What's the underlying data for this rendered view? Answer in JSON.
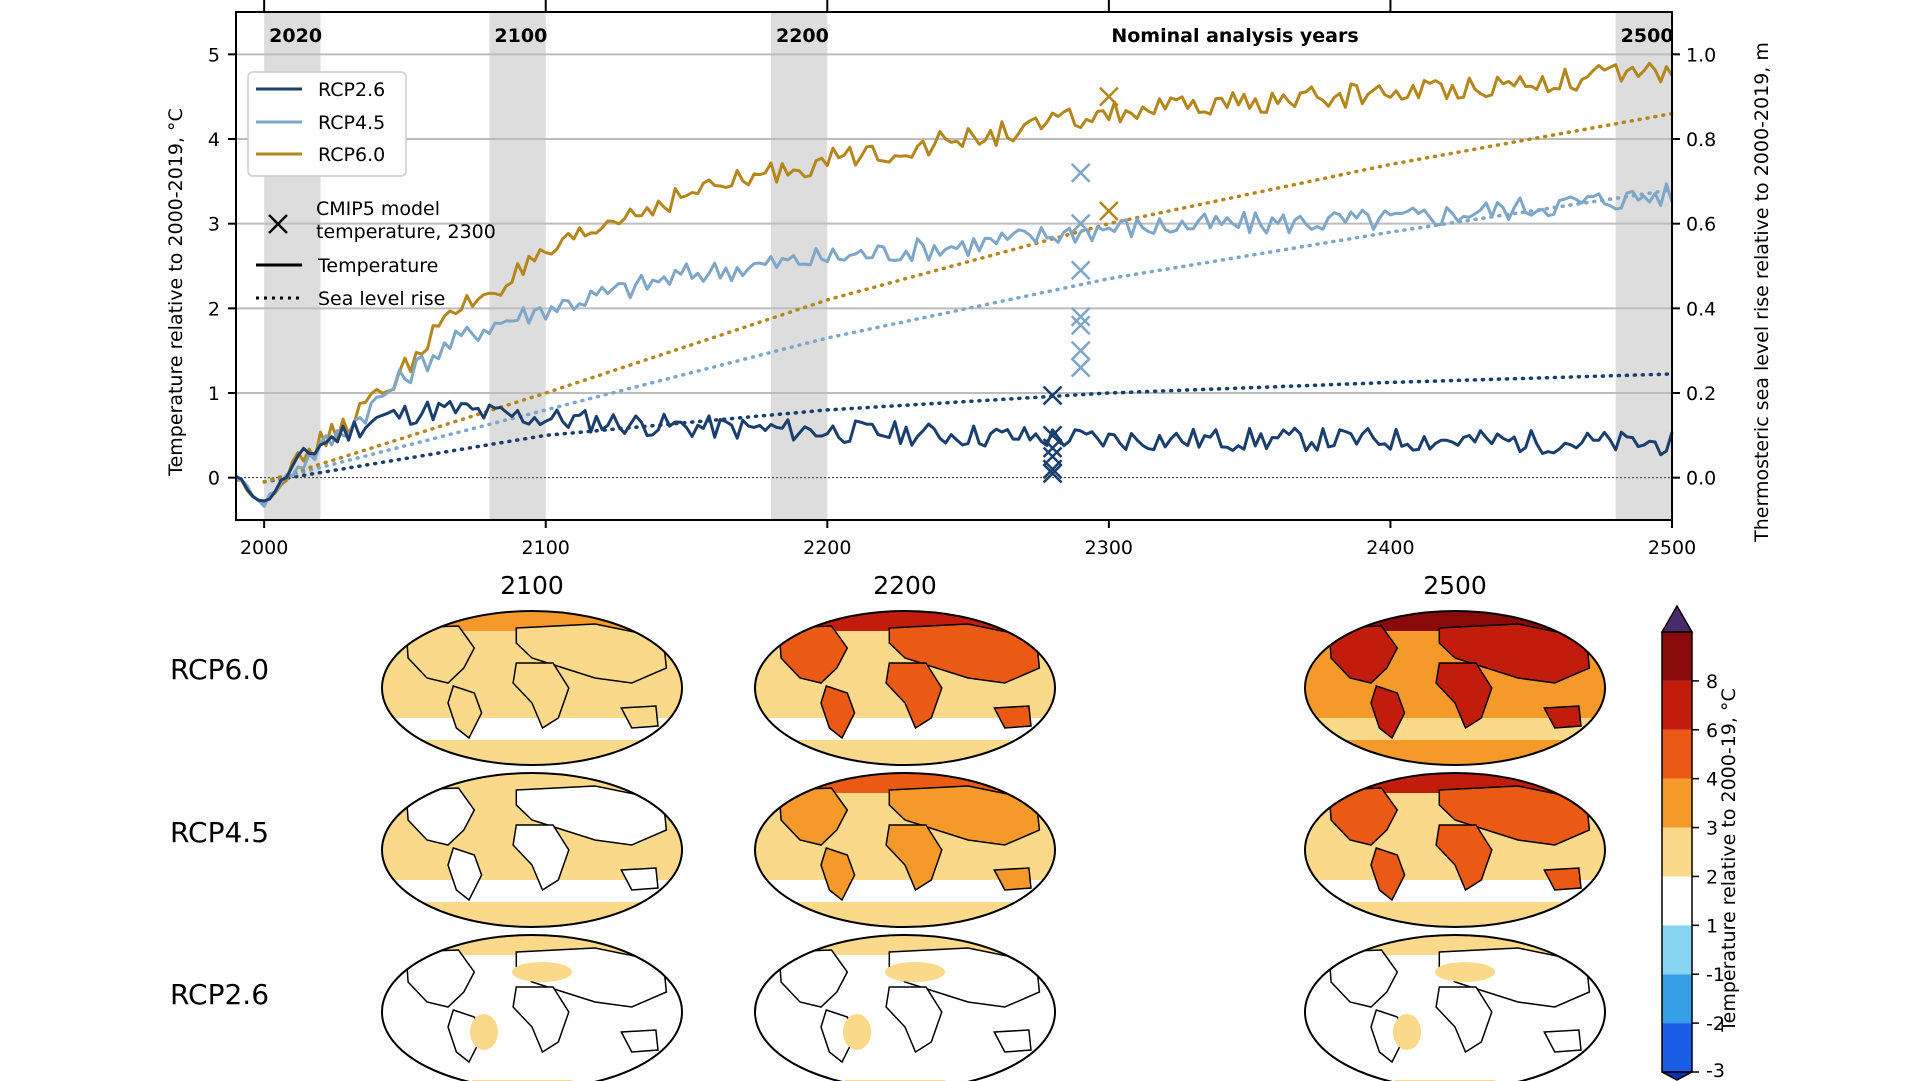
{
  "chart_data": [
    {
      "type": "line",
      "x_range": [
        1990,
        2500
      ],
      "y_left": {
        "label": "Temperature relative to 2000-2019, °C",
        "ylim": [
          -0.5,
          5.5
        ],
        "ticks": [
          0,
          1,
          2,
          3,
          4,
          5
        ]
      },
      "y_right": {
        "label": "Thermosteric sea level rise relative to 2000-2019, m",
        "ylim": [
          -0.1,
          1.1
        ],
        "ticks": [
          "0.0",
          "0.2",
          "0.4",
          "0.6",
          "0.8",
          "1.0"
        ]
      },
      "x_ticks": [
        2000,
        2100,
        2200,
        2300,
        2400,
        2500
      ],
      "top_ticks": [
        2000,
        2100,
        2200,
        2300,
        2400
      ],
      "shaded_periods": [
        {
          "label": "2020",
          "start": 2000,
          "end": 2020
        },
        {
          "label": "2100",
          "start": 2080,
          "end": 2100
        },
        {
          "label": "2200",
          "start": 2180,
          "end": 2200
        },
        {
          "label": "2500",
          "start": 2480,
          "end": 2500
        }
      ],
      "annotation": "Nominal analysis years",
      "legend": {
        "position": "top-left",
        "entries": [
          "RCP2.6",
          "RCP4.5",
          "RCP6.0"
        ],
        "marker_entry": "CMIP5 model temperature, 2300",
        "style_entries": [
          "Temperature",
          "Sea level rise"
        ]
      },
      "series": [
        {
          "name": "RCP2.6",
          "color": "#1a3f6e",
          "temperature": {
            "x": [
              1990,
              2000,
              2010,
              2020,
              2030,
              2040,
              2050,
              2060,
              2070,
              2080,
              2100,
              2150,
              2200,
              2300,
              2400,
              2500
            ],
            "y": [
              0.0,
              -0.3,
              0.1,
              0.4,
              0.55,
              0.7,
              0.75,
              0.8,
              0.8,
              0.75,
              0.7,
              0.6,
              0.55,
              0.45,
              0.45,
              0.4
            ]
          },
          "sea_level": {
            "x": [
              2000,
              2100,
              2200,
              2300,
              2400,
              2500
            ],
            "y": [
              -0.01,
              0.1,
              0.16,
              0.2,
              0.225,
              0.245
            ]
          }
        },
        {
          "name": "RCP4.5",
          "color": "#7ea6c8",
          "temperature": {
            "x": [
              1990,
              2000,
              2010,
              2020,
              2030,
              2040,
              2050,
              2060,
              2070,
              2080,
              2100,
              2125,
              2150,
              2200,
              2250,
              2300,
              2400,
              2500
            ],
            "y": [
              0.0,
              -0.3,
              0.1,
              0.35,
              0.6,
              0.9,
              1.2,
              1.45,
              1.65,
              1.8,
              2.0,
              2.2,
              2.4,
              2.6,
              2.75,
              2.95,
              3.05,
              3.35
            ]
          },
          "sea_level": {
            "x": [
              2000,
              2100,
              2200,
              2300,
              2400,
              2500
            ],
            "y": [
              -0.01,
              0.16,
              0.33,
              0.47,
              0.58,
              0.68
            ]
          }
        },
        {
          "name": "RCP6.0",
          "color": "#b5861b",
          "temperature": {
            "x": [
              1990,
              2000,
              2010,
              2020,
              2030,
              2040,
              2050,
              2060,
              2070,
              2080,
              2100,
              2125,
              2150,
              2200,
              2250,
              2300,
              2400,
              2500
            ],
            "y": [
              0.0,
              -0.3,
              0.1,
              0.4,
              0.65,
              0.95,
              1.3,
              1.7,
              2.0,
              2.2,
              2.6,
              3.05,
              3.35,
              3.75,
              4.0,
              4.3,
              4.55,
              4.8
            ]
          },
          "sea_level": {
            "x": [
              2000,
              2100,
              2200,
              2300,
              2400,
              2500
            ],
            "y": [
              -0.01,
              0.2,
              0.42,
              0.6,
              0.74,
              0.86
            ]
          }
        }
      ],
      "cmip5_markers": [
        {
          "series": "RCP2.6",
          "x": 2280,
          "y": [
            0.97,
            0.5,
            0.35,
            0.25,
            0.1,
            0.05
          ]
        },
        {
          "series": "RCP4.5",
          "x": 2290,
          "y": [
            3.6,
            3.0,
            2.45,
            1.9,
            1.8,
            1.5,
            1.3
          ]
        },
        {
          "series": "RCP6.0",
          "x": 2300,
          "y": [
            4.5,
            3.15
          ]
        }
      ]
    },
    {
      "type": "heatmap",
      "columns": [
        "2100",
        "2200",
        "2500"
      ],
      "rows": [
        "RCP6.0",
        "RCP4.5",
        "RCP2.6"
      ],
      "colorbar": {
        "label": "Temperature relative to 2000-19, °C",
        "ticks": [
          "-3",
          "-2",
          "-1",
          "1",
          "2",
          "3",
          "4",
          "6",
          "8"
        ],
        "colors": [
          "#1a5ce6",
          "#35a0e8",
          "#86d4f2",
          "#ffffff",
          "#fbd98a",
          "#f59a2a",
          "#ea5a14",
          "#c21d0c",
          "#8a0a0a"
        ],
        "extend_top_color": "#4a2a6a",
        "extend_bottom_color": "#0a30b4"
      }
    }
  ]
}
